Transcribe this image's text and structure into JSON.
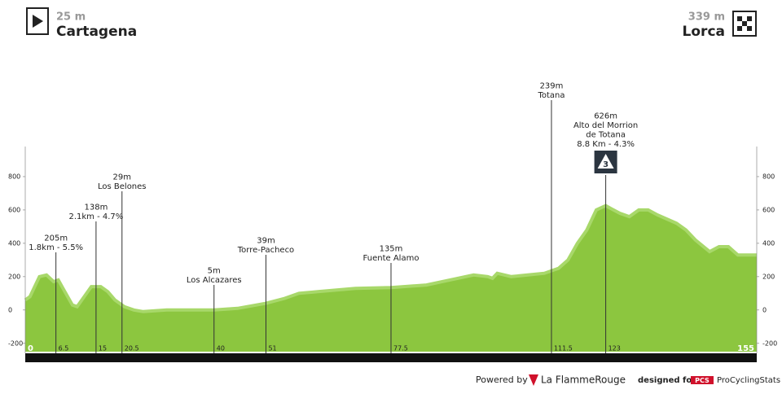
{
  "header": {
    "start_alt": "25 m",
    "start": "Cartagena",
    "finish_alt": "339 m",
    "finish": "Lorca"
  },
  "chart_data": {
    "type": "area",
    "color": "#8cc63f",
    "edge_color": "#a8d86a",
    "xlim": [
      0,
      155
    ],
    "ylim": [
      -250,
      1000
    ],
    "xticks": [
      0,
      6.5,
      15,
      20.5,
      40,
      51,
      77.5,
      111.5,
      123,
      155
    ],
    "yticks": [
      -200,
      0,
      200,
      400,
      600,
      800
    ],
    "x": [
      0,
      1,
      3,
      4.5,
      6,
      7,
      8,
      10,
      11,
      12.5,
      14,
      16,
      17.5,
      19,
      21,
      23,
      25,
      30,
      40,
      45,
      51,
      55,
      58,
      62,
      70,
      77.5,
      85,
      90,
      95,
      98,
      99,
      100,
      103,
      110,
      112,
      113,
      115,
      117,
      119,
      121,
      123,
      124,
      126,
      128,
      130,
      132,
      134,
      138,
      140,
      142,
      145,
      147,
      149,
      151,
      155
    ],
    "values": [
      60,
      80,
      200,
      210,
      170,
      180,
      130,
      30,
      20,
      80,
      140,
      140,
      110,
      60,
      20,
      0,
      -10,
      0,
      0,
      10,
      40,
      70,
      100,
      110,
      130,
      135,
      150,
      180,
      210,
      200,
      190,
      220,
      200,
      220,
      240,
      250,
      300,
      400,
      480,
      600,
      626,
      610,
      580,
      560,
      600,
      600,
      570,
      520,
      480,
      420,
      350,
      380,
      380,
      330,
      330
    ],
    "annotations": [
      {
        "km": 6.5,
        "lines": [
          "205m",
          "1.8km - 5.5%"
        ]
      },
      {
        "km": 15,
        "lines": [
          "138m",
          "2.1km - 4.7%"
        ]
      },
      {
        "km": 20.5,
        "lines": [
          "29m",
          "Los Belones"
        ]
      },
      {
        "km": 40,
        "lines": [
          "5m",
          "Los Alcazares"
        ]
      },
      {
        "km": 51,
        "lines": [
          "39m",
          "Torre-Pacheco"
        ]
      },
      {
        "km": 77.5,
        "lines": [
          "135m",
          "Fuente Alamo"
        ]
      },
      {
        "km": 111.5,
        "lines": [
          "239m",
          "Totana"
        ]
      },
      {
        "km": 123,
        "lines": [
          "626m",
          "Alto del Morrion",
          "de Totana",
          "8.8 Km - 4.3%"
        ],
        "category": "3"
      }
    ]
  },
  "footer": {
    "powered": "Powered by",
    "brand": "La FlammeRouge",
    "designed": "designed for",
    "pcs": "PCS",
    "pcs_name": "ProCyclingStats"
  }
}
